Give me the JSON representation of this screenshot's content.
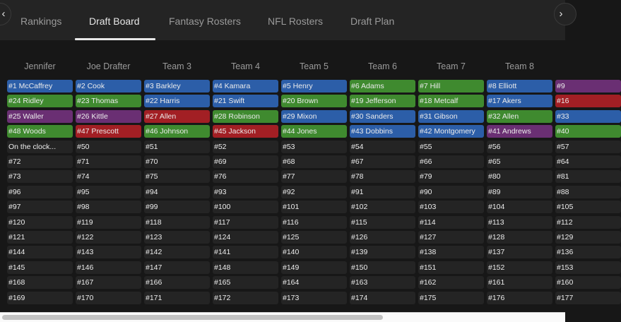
{
  "tabs": [
    {
      "label": "Rankings",
      "active": false
    },
    {
      "label": "Draft Board",
      "active": true
    },
    {
      "label": "Fantasy Rosters",
      "active": false
    },
    {
      "label": "NFL Rosters",
      "active": false
    },
    {
      "label": "Draft Plan",
      "active": false
    }
  ],
  "nav": {
    "prev_icon": "‹",
    "next_icon": "›"
  },
  "colors": {
    "blue": "#2c5ea8",
    "green": "#3f8a2f",
    "purple": "#6a2f73",
    "red": "#a21f24",
    "empty": "#242424"
  },
  "board": {
    "teams": [
      "Jennifer",
      "Joe Drafter",
      "Team 3",
      "Team 4",
      "Team 5",
      "Team 6",
      "Team 7",
      "Team 8",
      ""
    ],
    "rows": [
      [
        {
          "text": "#1 McCaffrey",
          "color": "blue"
        },
        {
          "text": "#2 Cook",
          "color": "blue"
        },
        {
          "text": "#3 Barkley",
          "color": "blue"
        },
        {
          "text": "#4 Kamara",
          "color": "blue"
        },
        {
          "text": "#5 Henry",
          "color": "blue"
        },
        {
          "text": "#6 Adams",
          "color": "green"
        },
        {
          "text": "#7 Hill",
          "color": "green"
        },
        {
          "text": "#8 Elliott",
          "color": "blue"
        },
        {
          "text": "#9",
          "color": "purple"
        }
      ],
      [
        {
          "text": "#24 Ridley",
          "color": "green"
        },
        {
          "text": "#23 Thomas",
          "color": "green"
        },
        {
          "text": "#22 Harris",
          "color": "blue"
        },
        {
          "text": "#21 Swift",
          "color": "blue"
        },
        {
          "text": "#20 Brown",
          "color": "green"
        },
        {
          "text": "#19 Jefferson",
          "color": "green"
        },
        {
          "text": "#18 Metcalf",
          "color": "green"
        },
        {
          "text": "#17 Akers",
          "color": "blue"
        },
        {
          "text": "#16",
          "color": "red"
        }
      ],
      [
        {
          "text": "#25 Waller",
          "color": "purple"
        },
        {
          "text": "#26 Kittle",
          "color": "purple"
        },
        {
          "text": "#27 Allen",
          "color": "red"
        },
        {
          "text": "#28 Robinson",
          "color": "green"
        },
        {
          "text": "#29 Mixon",
          "color": "blue"
        },
        {
          "text": "#30 Sanders",
          "color": "blue"
        },
        {
          "text": "#31 Gibson",
          "color": "blue"
        },
        {
          "text": "#32 Allen",
          "color": "green"
        },
        {
          "text": "#33",
          "color": "blue"
        }
      ],
      [
        {
          "text": "#48 Woods",
          "color": "green"
        },
        {
          "text": "#47 Prescott",
          "color": "red"
        },
        {
          "text": "#46 Johnson",
          "color": "green"
        },
        {
          "text": "#45 Jackson",
          "color": "red"
        },
        {
          "text": "#44 Jones",
          "color": "green"
        },
        {
          "text": "#43 Dobbins",
          "color": "blue"
        },
        {
          "text": "#42 Montgomery",
          "color": "blue"
        },
        {
          "text": "#41 Andrews",
          "color": "purple"
        },
        {
          "text": "#40",
          "color": "green"
        }
      ],
      [
        {
          "text": "On the clock...",
          "color": "empty"
        },
        {
          "text": "#50",
          "color": "empty"
        },
        {
          "text": "#51",
          "color": "empty"
        },
        {
          "text": "#52",
          "color": "empty"
        },
        {
          "text": "#53",
          "color": "empty"
        },
        {
          "text": "#54",
          "color": "empty"
        },
        {
          "text": "#55",
          "color": "empty"
        },
        {
          "text": "#56",
          "color": "empty"
        },
        {
          "text": "#57",
          "color": "empty"
        }
      ],
      [
        {
          "text": "#72",
          "color": "empty"
        },
        {
          "text": "#71",
          "color": "empty"
        },
        {
          "text": "#70",
          "color": "empty"
        },
        {
          "text": "#69",
          "color": "empty"
        },
        {
          "text": "#68",
          "color": "empty"
        },
        {
          "text": "#67",
          "color": "empty"
        },
        {
          "text": "#66",
          "color": "empty"
        },
        {
          "text": "#65",
          "color": "empty"
        },
        {
          "text": "#64",
          "color": "empty"
        }
      ],
      [
        {
          "text": "#73",
          "color": "empty"
        },
        {
          "text": "#74",
          "color": "empty"
        },
        {
          "text": "#75",
          "color": "empty"
        },
        {
          "text": "#76",
          "color": "empty"
        },
        {
          "text": "#77",
          "color": "empty"
        },
        {
          "text": "#78",
          "color": "empty"
        },
        {
          "text": "#79",
          "color": "empty"
        },
        {
          "text": "#80",
          "color": "empty"
        },
        {
          "text": "#81",
          "color": "empty"
        }
      ],
      [
        {
          "text": "#96",
          "color": "empty"
        },
        {
          "text": "#95",
          "color": "empty"
        },
        {
          "text": "#94",
          "color": "empty"
        },
        {
          "text": "#93",
          "color": "empty"
        },
        {
          "text": "#92",
          "color": "empty"
        },
        {
          "text": "#91",
          "color": "empty"
        },
        {
          "text": "#90",
          "color": "empty"
        },
        {
          "text": "#89",
          "color": "empty"
        },
        {
          "text": "#88",
          "color": "empty"
        }
      ],
      [
        {
          "text": "#97",
          "color": "empty"
        },
        {
          "text": "#98",
          "color": "empty"
        },
        {
          "text": "#99",
          "color": "empty"
        },
        {
          "text": "#100",
          "color": "empty"
        },
        {
          "text": "#101",
          "color": "empty"
        },
        {
          "text": "#102",
          "color": "empty"
        },
        {
          "text": "#103",
          "color": "empty"
        },
        {
          "text": "#104",
          "color": "empty"
        },
        {
          "text": "#105",
          "color": "empty"
        }
      ],
      [
        {
          "text": "#120",
          "color": "empty"
        },
        {
          "text": "#119",
          "color": "empty"
        },
        {
          "text": "#118",
          "color": "empty"
        },
        {
          "text": "#117",
          "color": "empty"
        },
        {
          "text": "#116",
          "color": "empty"
        },
        {
          "text": "#115",
          "color": "empty"
        },
        {
          "text": "#114",
          "color": "empty"
        },
        {
          "text": "#113",
          "color": "empty"
        },
        {
          "text": "#112",
          "color": "empty"
        }
      ],
      [
        {
          "text": "#121",
          "color": "empty"
        },
        {
          "text": "#122",
          "color": "empty"
        },
        {
          "text": "#123",
          "color": "empty"
        },
        {
          "text": "#124",
          "color": "empty"
        },
        {
          "text": "#125",
          "color": "empty"
        },
        {
          "text": "#126",
          "color": "empty"
        },
        {
          "text": "#127",
          "color": "empty"
        },
        {
          "text": "#128",
          "color": "empty"
        },
        {
          "text": "#129",
          "color": "empty"
        }
      ],
      [
        {
          "text": "#144",
          "color": "empty"
        },
        {
          "text": "#143",
          "color": "empty"
        },
        {
          "text": "#142",
          "color": "empty"
        },
        {
          "text": "#141",
          "color": "empty"
        },
        {
          "text": "#140",
          "color": "empty"
        },
        {
          "text": "#139",
          "color": "empty"
        },
        {
          "text": "#138",
          "color": "empty"
        },
        {
          "text": "#137",
          "color": "empty"
        },
        {
          "text": "#136",
          "color": "empty"
        }
      ],
      [
        {
          "text": "#145",
          "color": "empty"
        },
        {
          "text": "#146",
          "color": "empty"
        },
        {
          "text": "#147",
          "color": "empty"
        },
        {
          "text": "#148",
          "color": "empty"
        },
        {
          "text": "#149",
          "color": "empty"
        },
        {
          "text": "#150",
          "color": "empty"
        },
        {
          "text": "#151",
          "color": "empty"
        },
        {
          "text": "#152",
          "color": "empty"
        },
        {
          "text": "#153",
          "color": "empty"
        }
      ],
      [
        {
          "text": "#168",
          "color": "empty"
        },
        {
          "text": "#167",
          "color": "empty"
        },
        {
          "text": "#166",
          "color": "empty"
        },
        {
          "text": "#165",
          "color": "empty"
        },
        {
          "text": "#164",
          "color": "empty"
        },
        {
          "text": "#163",
          "color": "empty"
        },
        {
          "text": "#162",
          "color": "empty"
        },
        {
          "text": "#161",
          "color": "empty"
        },
        {
          "text": "#160",
          "color": "empty"
        }
      ],
      [
        {
          "text": "#169",
          "color": "empty"
        },
        {
          "text": "#170",
          "color": "empty"
        },
        {
          "text": "#171",
          "color": "empty"
        },
        {
          "text": "#172",
          "color": "empty"
        },
        {
          "text": "#173",
          "color": "empty"
        },
        {
          "text": "#174",
          "color": "empty"
        },
        {
          "text": "#175",
          "color": "empty"
        },
        {
          "text": "#176",
          "color": "empty"
        },
        {
          "text": "#177",
          "color": "empty"
        }
      ]
    ]
  }
}
